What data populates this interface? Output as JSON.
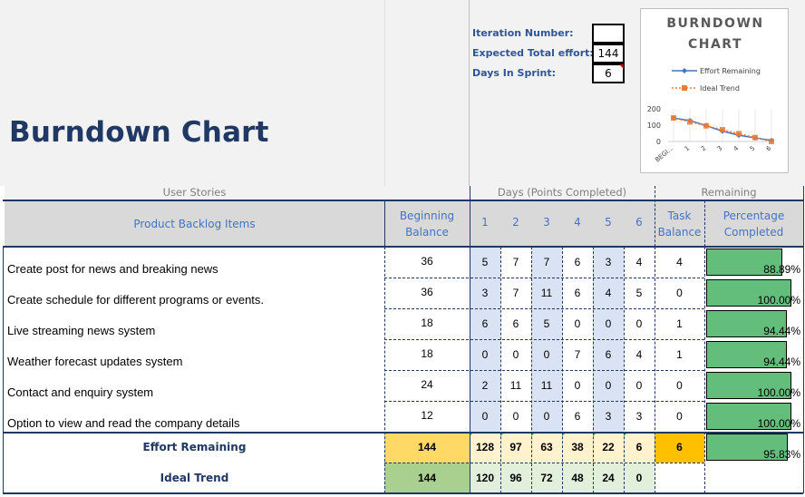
{
  "title": "Burndown Chart",
  "meta": {
    "iteration_label": "Iteration Number:",
    "iteration_value": "",
    "effort_label": "Expected Total effort:",
    "effort_value": "144",
    "days_label": "Days In Sprint:",
    "days_value": "6"
  },
  "chart_data": {
    "type": "line",
    "title": "BURNDOWN CHART",
    "categories": [
      "BEGI...",
      "1",
      "2",
      "3",
      "4",
      "5",
      "6"
    ],
    "series": [
      {
        "name": "Effort Remaining",
        "values": [
          144,
          128,
          97,
          63,
          38,
          22,
          6
        ],
        "color": "#4472c4"
      },
      {
        "name": "Ideal Trend",
        "values": [
          144,
          120,
          96,
          72,
          48,
          24,
          0
        ],
        "color": "#ed7d31"
      }
    ],
    "y_ticks": [
      "200",
      "100",
      "0"
    ],
    "ylim": [
      0,
      200
    ],
    "grid": true,
    "legend": "top"
  },
  "headers": {
    "user_stories": "User Stories",
    "days": "Days (Points Completed)",
    "remaining": "Remaining",
    "backlog": "Product Backlog Items",
    "beginning_1": "Beginning",
    "beginning_2": "Balance",
    "day_labels": [
      "1",
      "2",
      "3",
      "4",
      "5",
      "6"
    ],
    "task_1": "Task",
    "task_2": "Balance",
    "pct_1": "Percentage",
    "pct_2": "Completed"
  },
  "rows": [
    {
      "story": "Create post for news and breaking news",
      "begin": "36",
      "days": [
        "5",
        "7",
        "7",
        "6",
        "3",
        "4"
      ],
      "task": "4",
      "pct_label": "88.89%",
      "pct": 0.8889
    },
    {
      "story": "Create schedule for different programs or events.",
      "begin": "36",
      "days": [
        "3",
        "7",
        "11",
        "6",
        "4",
        "5"
      ],
      "task": "0",
      "pct_label": "100.00%",
      "pct": 1.0
    },
    {
      "story": "Live streaming news system",
      "begin": "18",
      "days": [
        "6",
        "6",
        "5",
        "0",
        "0",
        "0"
      ],
      "task": "1",
      "pct_label": "94.44%",
      "pct": 0.9444
    },
    {
      "story": "Weather forecast updates system",
      "begin": "18",
      "days": [
        "0",
        "0",
        "0",
        "7",
        "6",
        "4"
      ],
      "task": "1",
      "pct_label": "94.44%",
      "pct": 0.9444
    },
    {
      "story": "Contact and enquiry system",
      "begin": "24",
      "days": [
        "2",
        "11",
        "11",
        "0",
        "0",
        "0"
      ],
      "task": "0",
      "pct_label": "100.00%",
      "pct": 1.0
    },
    {
      "story": "Option to view and read the company details",
      "begin": "12",
      "days": [
        "0",
        "0",
        "0",
        "6",
        "3",
        "3"
      ],
      "task": "0",
      "pct_label": "100.00%",
      "pct": 1.0
    }
  ],
  "summary": {
    "effort_label": "Effort Remaining",
    "effort_begin": "144",
    "effort_days": [
      "128",
      "97",
      "63",
      "38",
      "22",
      "6"
    ],
    "effort_task": "6",
    "effort_pct_label": "95.83%",
    "effort_pct": 0.9583,
    "ideal_label": "Ideal Trend",
    "ideal_begin": "144",
    "ideal_days": [
      "120",
      "96",
      "72",
      "48",
      "24",
      "0"
    ]
  },
  "colors": {
    "title": "#1f3864",
    "header_text": "#4472c4",
    "effort_fill": "#ffd966",
    "ideal_fill": "#a9d08e",
    "ideal_days_fill": "#e2efda",
    "task_total_fill": "#ffc000",
    "bar_fill": "#63be7b",
    "day_shade": "#dae3f3"
  }
}
